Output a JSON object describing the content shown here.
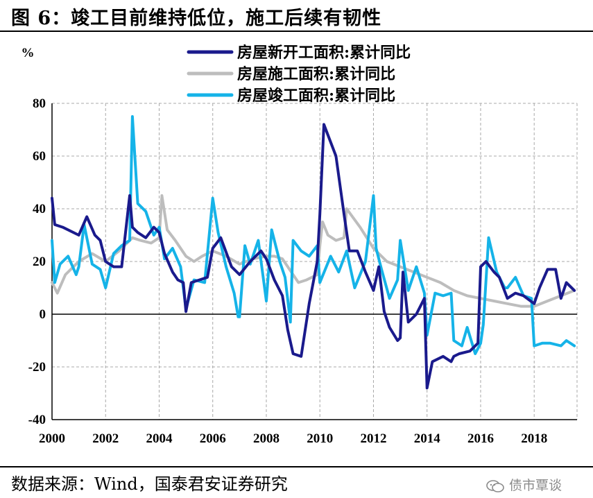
{
  "figure": {
    "title": "图 6：竣工目前维持低位，施工后续有韧性",
    "source": "数据来源：Wind，国泰君安证券研究",
    "watermark": "债市覃谈"
  },
  "chart_data": {
    "type": "line",
    "ylabel": "%",
    "ylim": [
      -40,
      80
    ],
    "yticks": [
      -40,
      -20,
      0,
      20,
      40,
      60,
      80
    ],
    "xlim": [
      2000,
      2019.6
    ],
    "xticks": [
      "2000",
      "2002",
      "2004",
      "2006",
      "2008",
      "2010",
      "2012",
      "2014",
      "2016",
      "2018"
    ],
    "grid": true,
    "legend_position": "top-right",
    "series": [
      {
        "name": "房屋新开工面积:累计同比",
        "color": "#1a1a8c",
        "x": [
          2000.0,
          2000.1,
          2000.4,
          2001.0,
          2001.3,
          2001.6,
          2001.8,
          2002.0,
          2002.3,
          2002.6,
          2002.9,
          2003.0,
          2003.2,
          2003.5,
          2003.8,
          2004.0,
          2004.2,
          2004.5,
          2004.7,
          2004.9,
          2005.0,
          2005.2,
          2005.5,
          2005.8,
          2006.0,
          2006.3,
          2006.7,
          2007.0,
          2007.4,
          2007.8,
          2008.0,
          2008.3,
          2008.6,
          2008.8,
          2009.0,
          2009.3,
          2009.6,
          2009.9,
          2010.0,
          2010.15,
          2010.3,
          2010.6,
          2010.9,
          2011.1,
          2011.4,
          2011.7,
          2012.0,
          2012.2,
          2012.4,
          2012.6,
          2012.9,
          2013.0,
          2013.1,
          2013.3,
          2013.6,
          2013.9,
          2014.0,
          2014.2,
          2014.6,
          2014.9,
          2015.0,
          2015.2,
          2015.6,
          2015.9,
          2016.0,
          2016.2,
          2016.5,
          2016.7,
          2017.0,
          2017.3,
          2017.6,
          2018.0,
          2018.2,
          2018.5,
          2018.8,
          2019.0,
          2019.2,
          2019.5
        ],
        "values": [
          44,
          34,
          33,
          30,
          37,
          30,
          28,
          20,
          18,
          18,
          45,
          33,
          31,
          29,
          33,
          31,
          23,
          16,
          13,
          12,
          1,
          12,
          13,
          14,
          25,
          29,
          18,
          15,
          20,
          24,
          21,
          13,
          7,
          -6,
          -15,
          -16,
          4,
          20,
          38,
          72,
          68,
          60,
          38,
          24,
          24,
          16,
          9,
          18,
          1,
          -5,
          -10,
          -9,
          16,
          -3,
          0,
          6,
          -28,
          -18,
          -16,
          -18,
          -16,
          -15,
          -14,
          -11,
          18,
          20,
          16,
          14,
          6,
          8,
          7,
          4,
          10,
          17,
          17,
          6,
          12,
          9
        ]
      },
      {
        "name": "房屋施工面积:累计同比",
        "color": "#bdbdbd",
        "x": [
          2000.0,
          2000.2,
          2000.5,
          2001.0,
          2001.5,
          2002.0,
          2002.5,
          2003.0,
          2003.3,
          2003.7,
          2004.0,
          2004.1,
          2004.3,
          2004.6,
          2005.0,
          2005.3,
          2005.6,
          2006.0,
          2006.5,
          2007.0,
          2007.5,
          2008.0,
          2008.3,
          2008.6,
          2009.0,
          2009.2,
          2009.5,
          2009.9,
          2010.0,
          2010.1,
          2010.3,
          2010.6,
          2010.9,
          2011.0,
          2011.5,
          2012.0,
          2012.5,
          2013.0,
          2013.5,
          2014.0,
          2014.5,
          2015.0,
          2015.5,
          2016.0,
          2016.5,
          2017.0,
          2017.5,
          2018.0,
          2018.5,
          2019.0,
          2019.5
        ],
        "values": [
          12,
          8,
          15,
          20,
          23,
          20,
          24,
          29,
          28,
          27,
          29,
          45,
          32,
          28,
          22,
          20,
          22,
          24,
          22,
          19,
          21,
          22,
          22,
          21,
          15,
          12,
          13,
          15,
          26,
          35,
          30,
          28,
          29,
          40,
          33,
          25,
          20,
          18,
          16,
          14,
          12,
          9,
          7,
          6,
          5,
          4,
          3,
          3,
          5,
          7,
          9
        ]
      },
      {
        "name": "房屋竣工面积:累计同比",
        "color": "#15b3e8",
        "x": [
          2000.0,
          2000.1,
          2000.3,
          2000.6,
          2000.9,
          2001.0,
          2001.2,
          2001.5,
          2001.8,
          2002.0,
          2002.3,
          2002.6,
          2002.9,
          2003.0,
          2003.2,
          2003.5,
          2003.8,
          2004.0,
          2004.2,
          2004.5,
          2004.8,
          2005.0,
          2005.3,
          2005.7,
          2006.0,
          2006.2,
          2006.5,
          2006.8,
          2006.95,
          2007.0,
          2007.2,
          2007.4,
          2007.7,
          2008.0,
          2008.2,
          2008.5,
          2008.7,
          2008.9,
          2009.0,
          2009.3,
          2009.6,
          2009.9,
          2010.0,
          2010.4,
          2010.7,
          2011.0,
          2011.3,
          2011.7,
          2012.0,
          2012.1,
          2012.3,
          2012.6,
          2012.9,
          2013.0,
          2013.3,
          2013.6,
          2013.9,
          2014.0,
          2014.3,
          2014.6,
          2014.9,
          2015.0,
          2015.3,
          2015.5,
          2015.8,
          2016.0,
          2016.1,
          2016.3,
          2016.6,
          2016.9,
          2017.0,
          2017.3,
          2017.6,
          2017.9,
          2018.0,
          2018.3,
          2018.6,
          2019.0,
          2019.2,
          2019.5
        ],
        "values": [
          28,
          12,
          19,
          22,
          15,
          18,
          34,
          19,
          17,
          10,
          23,
          26,
          28,
          75,
          42,
          39,
          30,
          33,
          21,
          25,
          18,
          2,
          13,
          12,
          44,
          31,
          18,
          8,
          -1,
          -1,
          26,
          19,
          28,
          5,
          32,
          20,
          14,
          -3,
          28,
          24,
          22,
          26,
          12,
          22,
          16,
          24,
          10,
          20,
          45,
          25,
          17,
          6,
          13,
          28,
          9,
          18,
          8,
          -8,
          8,
          7,
          8,
          -10,
          -12,
          -5,
          -15,
          -11,
          -4,
          29,
          16,
          10,
          10,
          14,
          7,
          6,
          -12,
          -11,
          -11,
          -12,
          -10,
          -12
        ]
      }
    ]
  }
}
